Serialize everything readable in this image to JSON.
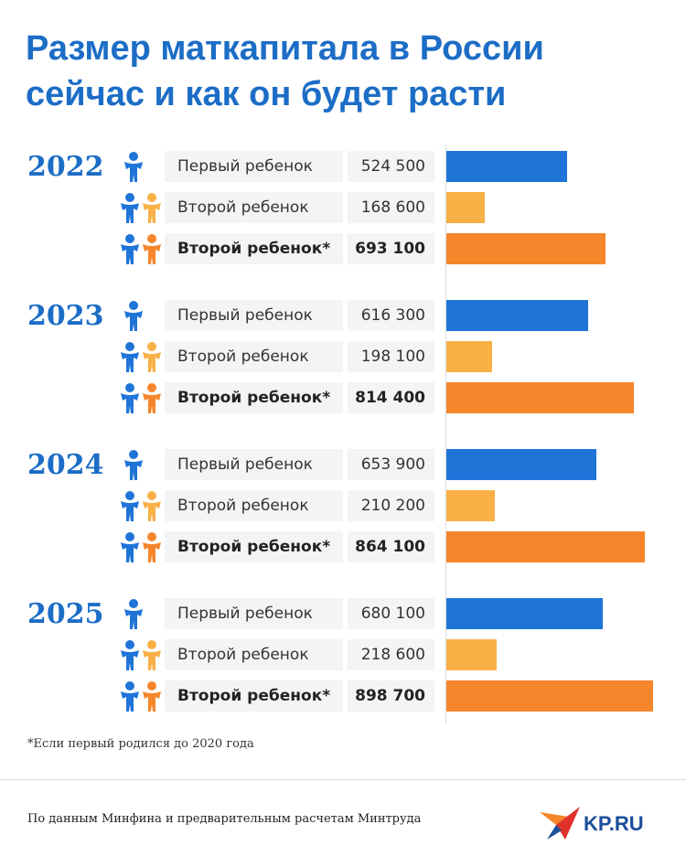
{
  "chart_data": {
    "type": "bar",
    "orientation": "horizontal",
    "title": "Размер маткапитала в России сейчас и как он будет расти",
    "categories": [
      "2022",
      "2023",
      "2024",
      "2025"
    ],
    "series": [
      {
        "name": "Первый ребенок",
        "color": "#1f74d8",
        "values": [
          524500,
          616300,
          653900,
          680100
        ],
        "value_labels": [
          "524 500",
          "616 300",
          "653 900",
          "680 100"
        ]
      },
      {
        "name": "Второй ребенок",
        "color": "#f8b047",
        "values": [
          168600,
          198100,
          210200,
          218600
        ],
        "value_labels": [
          "168 600",
          "198 100",
          "210 200",
          "218 600"
        ]
      },
      {
        "name": "Второй ребенок*",
        "color": "#f5862c",
        "values": [
          693100,
          814400,
          864100,
          898700
        ],
        "value_labels": [
          "693 100",
          "814 400",
          "864 100",
          "898 700"
        ]
      }
    ],
    "footnote": "*Если первый родился до 2020 года",
    "source": "По данным Минфина и предварительным расчетам Минтруда",
    "logo": "KP.RU"
  }
}
